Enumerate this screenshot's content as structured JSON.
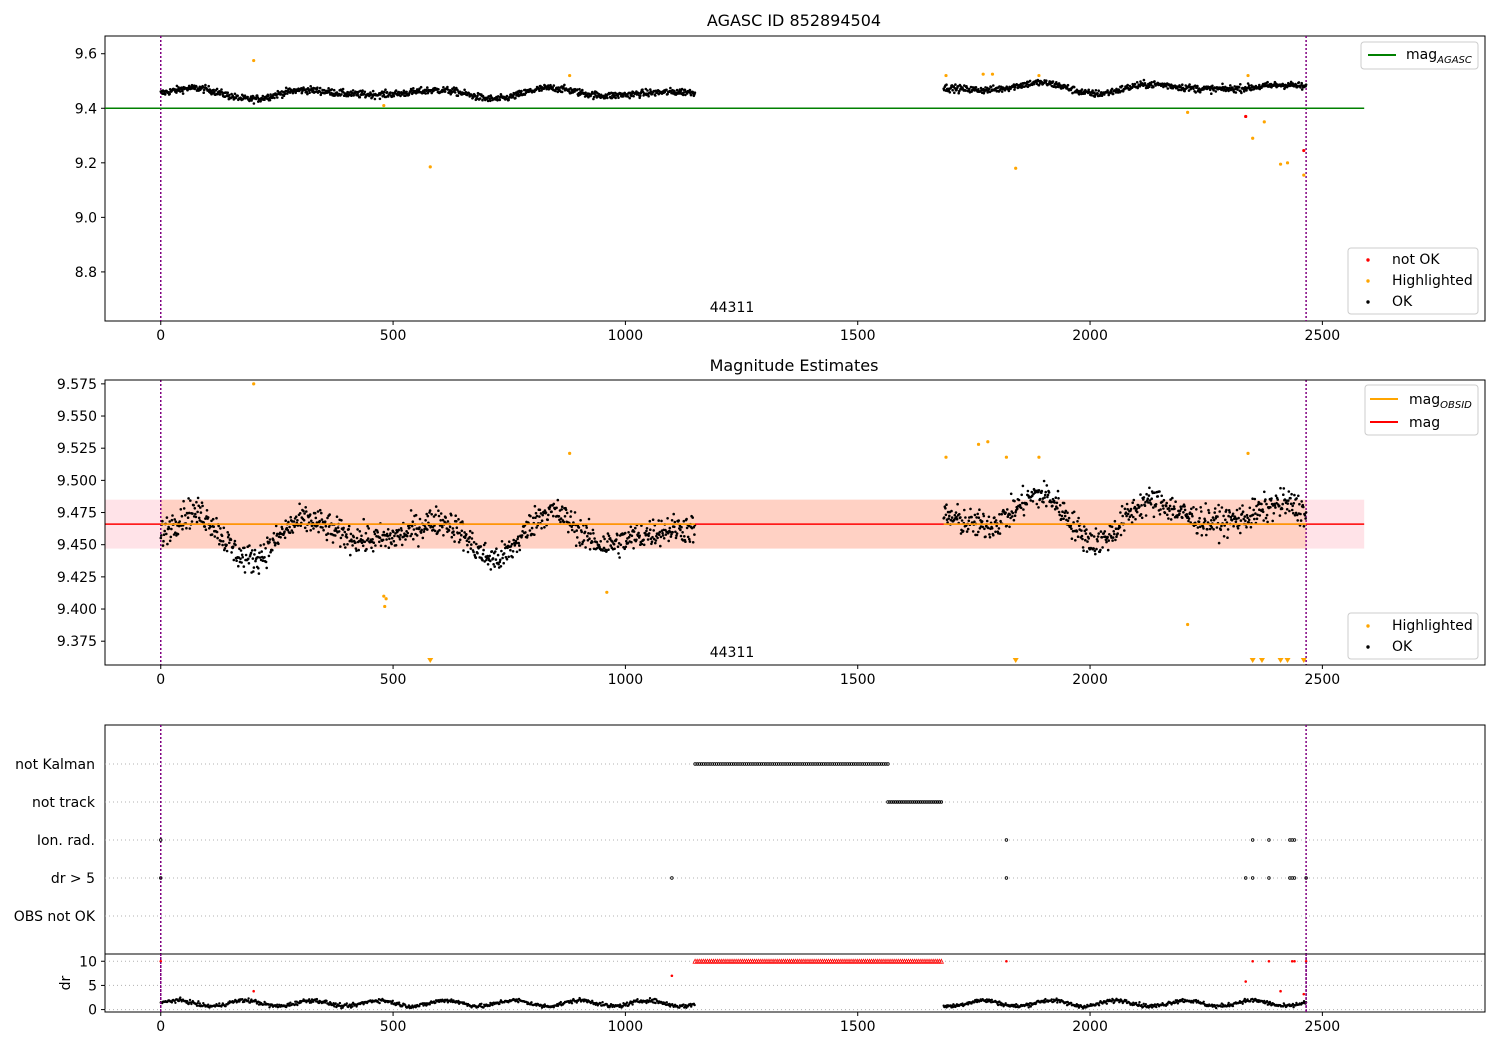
{
  "figure": {
    "obsid_label": "44311"
  },
  "chart_data": [
    {
      "panel": "top",
      "type": "scatter",
      "title": "AGASC ID 852894504",
      "xlim": [
        -120,
        2850
      ],
      "ylim": [
        8.62,
        9.665
      ],
      "xticks": [
        0,
        500,
        1000,
        1500,
        2000,
        2500
      ],
      "yticks": [
        8.8,
        9.0,
        9.2,
        9.4,
        9.6
      ],
      "ytick_labels": [
        "8.8",
        "9.0",
        "9.2",
        "9.4",
        "9.6"
      ],
      "grid": false,
      "annotation": "44311",
      "lines": [
        {
          "name": "mag_AGASC",
          "color": "#008000",
          "y": 9.4,
          "x": [
            -120,
            2590
          ]
        }
      ],
      "vlines": [
        0,
        2465
      ],
      "segments": [
        {
          "x": [
            0,
            1150
          ],
          "level": 9.455,
          "noise": 0.013
        },
        {
          "x": [
            1685,
            2465
          ],
          "level": 9.475,
          "noise": 0.013
        }
      ],
      "wave": {
        "amp": 0.022,
        "period": 260
      },
      "highlighted_points": [
        [
          200,
          9.575
        ],
        [
          480,
          9.41
        ],
        [
          580,
          9.185
        ],
        [
          880,
          9.52
        ],
        [
          1690,
          9.52
        ],
        [
          1770,
          9.525
        ],
        [
          1790,
          9.525
        ],
        [
          1840,
          9.18
        ],
        [
          1890,
          9.52
        ],
        [
          2210,
          9.385
        ],
        [
          2340,
          9.52
        ],
        [
          2350,
          9.29
        ],
        [
          2375,
          9.35
        ],
        [
          2410,
          9.195
        ],
        [
          2425,
          9.2
        ],
        [
          2460,
          9.155
        ]
      ],
      "not_ok_points": [
        [
          2335,
          9.37
        ],
        [
          2460,
          9.245
        ]
      ],
      "legend_upper": {
        "labels": [
          "mag",
          "AGASC"
        ]
      },
      "legend_lower": {
        "labels": [
          "not OK",
          "Highlighted",
          "OK"
        ],
        "colors": [
          "#ff0000",
          "#ffa500",
          "#000000"
        ]
      }
    },
    {
      "panel": "middle",
      "type": "scatter",
      "title": "Magnitude Estimates",
      "xlim": [
        -120,
        2850
      ],
      "ylim": [
        9.3565,
        9.578
      ],
      "xticks": [
        0,
        500,
        1000,
        1500,
        2000,
        2500
      ],
      "yticks": [
        9.375,
        9.4,
        9.425,
        9.45,
        9.475,
        9.5,
        9.525,
        9.55,
        9.575
      ],
      "ytick_labels": [
        "9.375",
        "9.400",
        "9.425",
        "9.450",
        "9.475",
        "9.500",
        "9.525",
        "9.550",
        "9.575"
      ],
      "grid": false,
      "annotation": "44311",
      "band": {
        "y": [
          9.447,
          9.485
        ],
        "x": [
          -120,
          2590
        ]
      },
      "lines": [
        {
          "name": "mag",
          "color": "#ff0000",
          "y": 9.466,
          "x": [
            -120,
            2590
          ]
        },
        {
          "name": "mag_OBSID",
          "color": "#ffa500",
          "y": 9.466,
          "x": [
            0,
            1150
          ]
        },
        {
          "name": "mag_OBSID",
          "color": "#ffa500",
          "y": 9.466,
          "x": [
            1685,
            2465
          ]
        }
      ],
      "vlines": [
        0,
        2465
      ],
      "segments": [
        {
          "x": [
            0,
            1150
          ],
          "level": 9.458,
          "noise": 0.011
        },
        {
          "x": [
            1685,
            2465
          ],
          "level": 9.472,
          "noise": 0.011
        }
      ],
      "wave": {
        "amp": 0.02,
        "period": 260
      },
      "highlighted_points": [
        [
          200,
          9.575
        ],
        [
          480,
          9.41
        ],
        [
          482,
          9.402
        ],
        [
          485,
          9.408
        ],
        [
          960,
          9.413
        ],
        [
          880,
          9.521
        ],
        [
          1690,
          9.518
        ],
        [
          1760,
          9.528
        ],
        [
          1780,
          9.53
        ],
        [
          1820,
          9.518
        ],
        [
          1890,
          9.518
        ],
        [
          2210,
          9.388
        ],
        [
          2340,
          9.521
        ]
      ],
      "offscale_x": [
        580,
        1840,
        2350,
        2370,
        2410,
        2425,
        2460
      ],
      "legend_upper": {
        "labels": [
          "mag",
          "OBSID",
          "mag"
        ]
      },
      "legend_lower": {
        "labels": [
          "Highlighted",
          "OK"
        ],
        "colors": [
          "#ffa500",
          "#000000"
        ]
      }
    },
    {
      "panel": "flags",
      "type": "scatter",
      "xlim": [
        -120,
        2850
      ],
      "ytick_labels": [
        "not Kalman",
        "not track",
        "Ion. rad.",
        "dr > 5",
        "OBS not OK"
      ],
      "not_kalman": {
        "x": [
          1150,
          1565
        ],
        "count": 90
      },
      "not_track": {
        "x": [
          1565,
          1680
        ],
        "count": 28
      },
      "ion_rad": [
        0,
        1820,
        2350,
        2385,
        2430,
        2435,
        2440
      ],
      "dr_gt_5": [
        0,
        1100,
        1820,
        2335,
        2350,
        2385,
        2430,
        2435,
        2440,
        2465
      ]
    },
    {
      "panel": "dr",
      "type": "scatter",
      "xlim": [
        -120,
        2850
      ],
      "ylim": [
        -0.5,
        11.5
      ],
      "xticks": [
        0,
        500,
        1000,
        1500,
        2000,
        2500
      ],
      "yticks": [
        0,
        5,
        10
      ],
      "ylabel": "dr",
      "segments": [
        {
          "x": [
            0,
            1150
          ],
          "level": 1.3,
          "noise": 0.7
        },
        {
          "x": [
            1685,
            2465
          ],
          "level": 1.3,
          "noise": 0.7
        }
      ],
      "red_tri_range": {
        "x": [
          1150,
          1680
        ],
        "y": 10,
        "count": 120
      },
      "red_points": [
        [
          0,
          10
        ],
        [
          200,
          3.8
        ],
        [
          1100,
          7.0
        ],
        [
          1820,
          10
        ],
        [
          2335,
          5.8
        ],
        [
          2350,
          10
        ],
        [
          2385,
          10
        ],
        [
          2410,
          3.8
        ],
        [
          2435,
          10
        ],
        [
          2440,
          10
        ],
        [
          2460,
          3.2
        ],
        [
          2465,
          10
        ]
      ]
    }
  ]
}
